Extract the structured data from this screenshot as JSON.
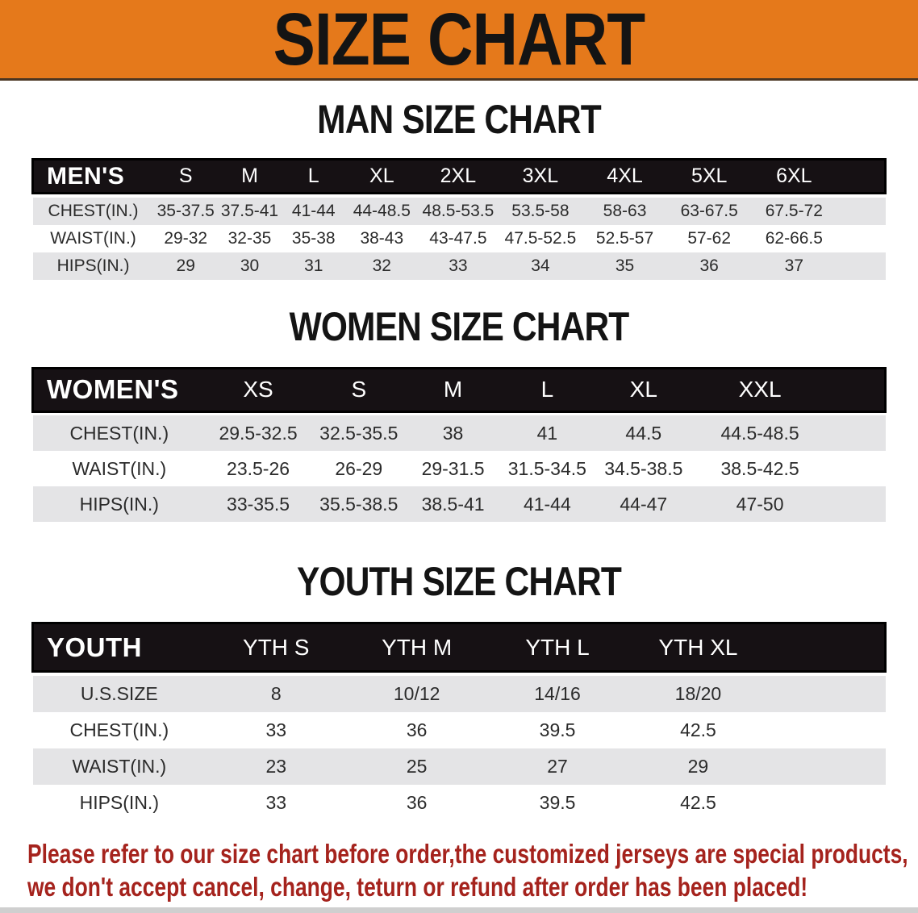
{
  "banner": {
    "title": "SIZE CHART"
  },
  "theme": {
    "banner_bg": "#e5791b",
    "header_bg": "#161114",
    "row_alt_bg": "#e4e4e6",
    "note_color": "#a5231d"
  },
  "men": {
    "heading": "MAN SIZE CHART",
    "label": "MEN'S",
    "columns": [
      "S",
      "M",
      "L",
      "XL",
      "2XL",
      "3XL",
      "4XL",
      "5XL",
      "6XL"
    ],
    "rows": [
      {
        "label": "CHEST(IN.)",
        "values": [
          "35-37.5",
          "37.5-41",
          "41-44",
          "44-48.5",
          "48.5-53.5",
          "53.5-58",
          "58-63",
          "63-67.5",
          "67.5-72"
        ]
      },
      {
        "label": "WAIST(IN.)",
        "values": [
          "29-32",
          "32-35",
          "35-38",
          "38-43",
          "43-47.5",
          "47.5-52.5",
          "52.5-57",
          "57-62",
          "62-66.5"
        ]
      },
      {
        "label": "HIPS(IN.)",
        "values": [
          "29",
          "30",
          "31",
          "32",
          "33",
          "34",
          "35",
          "36",
          "37"
        ]
      }
    ]
  },
  "women": {
    "heading": "WOMEN SIZE CHART",
    "label": "WOMEN'S",
    "columns": [
      "XS",
      "S",
      "M",
      "L",
      "XL",
      "XXL"
    ],
    "rows": [
      {
        "label": "CHEST(IN.)",
        "values": [
          "29.5-32.5",
          "32.5-35.5",
          "38",
          "41",
          "44.5",
          "44.5-48.5"
        ]
      },
      {
        "label": "WAIST(IN.)",
        "values": [
          "23.5-26",
          "26-29",
          "29-31.5",
          "31.5-34.5",
          "34.5-38.5",
          "38.5-42.5"
        ]
      },
      {
        "label": "HIPS(IN.)",
        "values": [
          "33-35.5",
          "35.5-38.5",
          "38.5-41",
          "41-44",
          "44-47",
          "47-50"
        ]
      }
    ]
  },
  "youth": {
    "heading": "YOUTH SIZE CHART",
    "label": "YOUTH",
    "columns": [
      "YTH S",
      "YTH M",
      "YTH L",
      "YTH XL"
    ],
    "rows": [
      {
        "label": "U.S.SIZE",
        "values": [
          "8",
          "10/12",
          "14/16",
          "18/20"
        ]
      },
      {
        "label": "CHEST(IN.)",
        "values": [
          "33",
          "36",
          "39.5",
          "42.5"
        ]
      },
      {
        "label": "WAIST(IN.)",
        "values": [
          "23",
          "25",
          "27",
          "29"
        ]
      },
      {
        "label": "HIPS(IN.)",
        "values": [
          "33",
          "36",
          "39.5",
          "42.5"
        ]
      }
    ]
  },
  "note": {
    "line1": "Please refer to our size chart before order,the customized jerseys are special products,",
    "line2": "we don't accept cancel, change, teturn or refund after order has been placed!"
  }
}
